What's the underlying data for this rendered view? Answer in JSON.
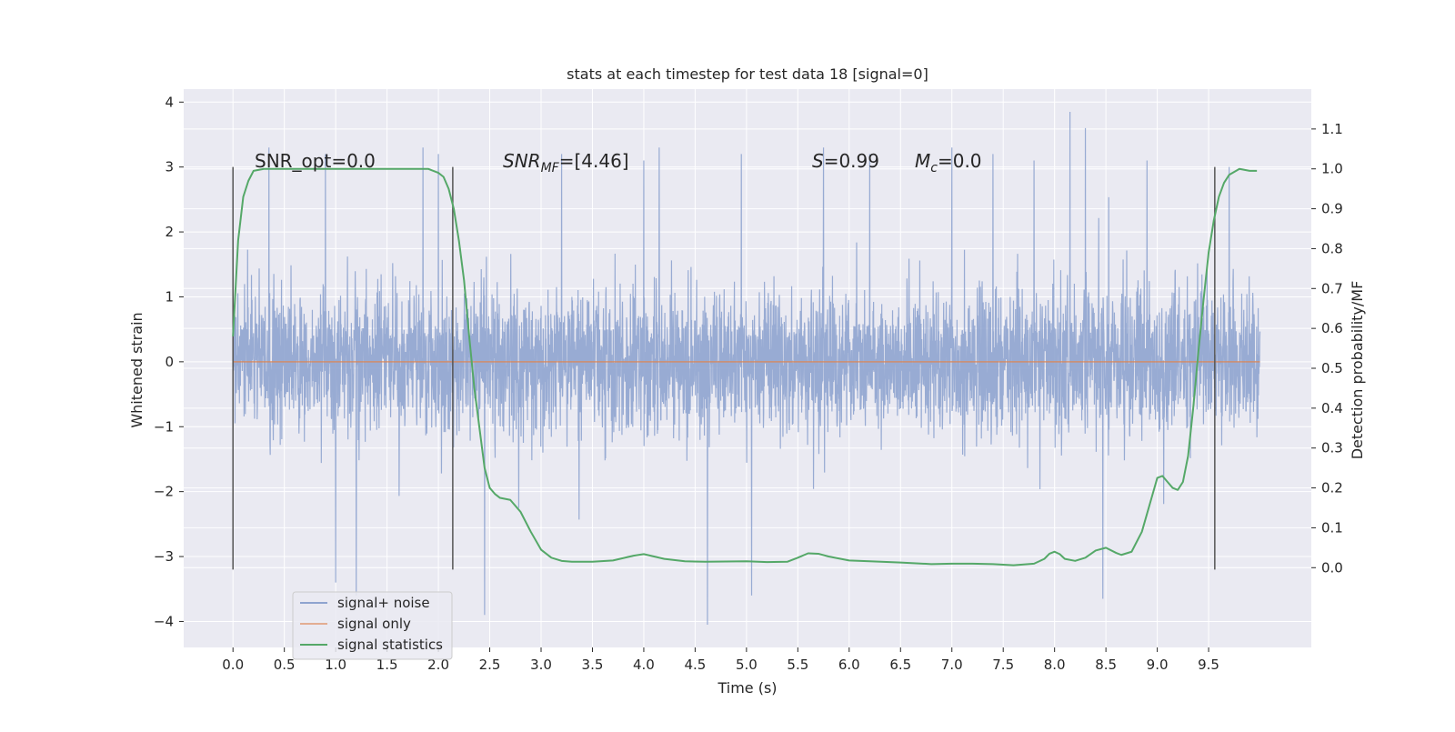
{
  "chart_data": {
    "type": "line",
    "title": "stats at each timestep for test data 18 [signal=0]",
    "xlabel": "Time (s)",
    "ylabel": "Whitened strain",
    "ylabel_right": "Detection probability/MF",
    "xlim": [
      -0.48,
      10.5
    ],
    "ylim": [
      -4.4,
      4.2
    ],
    "ylim_right": [
      -0.2,
      1.2
    ],
    "x_ticks": [
      0.0,
      0.5,
      1.0,
      1.5,
      2.0,
      2.5,
      3.0,
      3.5,
      4.0,
      4.5,
      5.0,
      5.5,
      6.0,
      6.5,
      7.0,
      7.5,
      8.0,
      8.5,
      9.0,
      9.5
    ],
    "x_tick_labels": [
      "0.0",
      "0.5",
      "1.0",
      "1.5",
      "2.0",
      "2.5",
      "3.0",
      "3.5",
      "4.0",
      "4.5",
      "5.0",
      "5.5",
      "6.0",
      "6.5",
      "7.0",
      "7.5",
      "8.0",
      "8.5",
      "9.0",
      "9.5"
    ],
    "y_ticks": [
      -4,
      -3,
      -2,
      -1,
      0,
      1,
      2,
      3,
      4
    ],
    "y_tick_labels": [
      "−4",
      "−3",
      "−2",
      "−1",
      "0",
      "1",
      "2",
      "3",
      "4"
    ],
    "y_right_ticks": [
      0.0,
      0.1,
      0.2,
      0.3,
      0.4,
      0.5,
      0.6,
      0.7,
      0.8,
      0.9,
      1.0,
      1.1
    ],
    "y_right_tick_labels": [
      "0.0",
      "0.1",
      "0.2",
      "0.3",
      "0.4",
      "0.5",
      "0.6",
      "0.7",
      "0.8",
      "0.9",
      "1.0",
      "1.1"
    ],
    "grid": true,
    "legend_position": "bottom-left",
    "annotations": {
      "snr_opt": "SNR_opt=0.0",
      "snr_mf_sym": "SNR",
      "snr_mf_sub": "MF",
      "snr_mf_val": "=[4.46]",
      "s_sym": "S",
      "s_val": "=0.99",
      "mc_sym": "M",
      "mc_sub": "c",
      "mc_val": "=0.0"
    },
    "vertical_lines": [
      0.0,
      2.14,
      9.56
    ],
    "vertical_line_range": [
      -3.2,
      3.0
    ],
    "series": [
      {
        "name": "signal+ noise",
        "color": "#8fa4cf",
        "x_range": [
          0.0,
          10.0
        ],
        "band_approx": [
          -1.6,
          1.6
        ],
        "peaks": [
          [
            0.35,
            3.3
          ],
          [
            0.9,
            3.2
          ],
          [
            1.0,
            -3.4
          ],
          [
            1.2,
            -3.6
          ],
          [
            1.85,
            3.3
          ],
          [
            2.0,
            3.2
          ],
          [
            2.45,
            -3.9
          ],
          [
            3.2,
            3.2
          ],
          [
            4.0,
            3.1
          ],
          [
            4.15,
            3.3
          ],
          [
            4.62,
            -4.05
          ],
          [
            4.95,
            3.2
          ],
          [
            5.05,
            -3.6
          ],
          [
            5.75,
            3.3
          ],
          [
            6.2,
            3.2
          ],
          [
            7.0,
            3.3
          ],
          [
            7.4,
            3.2
          ],
          [
            7.8,
            3.1
          ],
          [
            8.15,
            3.85
          ],
          [
            8.3,
            3.6
          ],
          [
            8.47,
            -3.65
          ],
          [
            8.9,
            3.1
          ],
          [
            9.7,
            3.0
          ]
        ]
      },
      {
        "name": "signal only",
        "color": "#dd8452",
        "x": [
          0.0,
          10.0
        ],
        "y": [
          0.0,
          0.0
        ]
      },
      {
        "name": "signal statistics",
        "color": "#55a868",
        "axis": "right",
        "x": [
          0.0,
          0.05,
          0.1,
          0.15,
          0.2,
          0.3,
          0.5,
          1.0,
          1.5,
          1.9,
          2.0,
          2.05,
          2.1,
          2.15,
          2.2,
          2.25,
          2.3,
          2.35,
          2.4,
          2.45,
          2.5,
          2.55,
          2.6,
          2.7,
          2.8,
          2.9,
          3.0,
          3.1,
          3.2,
          3.3,
          3.5,
          3.7,
          3.9,
          4.0,
          4.2,
          4.4,
          4.6,
          5.0,
          5.2,
          5.4,
          5.5,
          5.6,
          5.7,
          5.8,
          6.0,
          6.2,
          6.5,
          6.8,
          7.0,
          7.2,
          7.4,
          7.6,
          7.8,
          7.9,
          7.95,
          8.0,
          8.05,
          8.1,
          8.2,
          8.3,
          8.4,
          8.5,
          8.6,
          8.65,
          8.75,
          8.85,
          8.95,
          9.0,
          9.05,
          9.1,
          9.15,
          9.2,
          9.25,
          9.3,
          9.35,
          9.4,
          9.45,
          9.5,
          9.55,
          9.6,
          9.65,
          9.7,
          9.8,
          9.9,
          9.97
        ],
        "y": [
          0.58,
          0.82,
          0.93,
          0.97,
          0.995,
          1.0,
          1.0,
          1.0,
          1.0,
          1.0,
          0.99,
          0.98,
          0.95,
          0.9,
          0.82,
          0.72,
          0.58,
          0.45,
          0.35,
          0.25,
          0.2,
          0.185,
          0.175,
          0.17,
          0.14,
          0.09,
          0.045,
          0.025,
          0.017,
          0.015,
          0.015,
          0.018,
          0.03,
          0.034,
          0.022,
          0.016,
          0.015,
          0.016,
          0.014,
          0.015,
          0.025,
          0.036,
          0.035,
          0.028,
          0.018,
          0.016,
          0.013,
          0.009,
          0.01,
          0.01,
          0.009,
          0.006,
          0.01,
          0.022,
          0.035,
          0.04,
          0.034,
          0.022,
          0.017,
          0.025,
          0.043,
          0.05,
          0.037,
          0.032,
          0.04,
          0.09,
          0.18,
          0.225,
          0.23,
          0.215,
          0.2,
          0.195,
          0.215,
          0.28,
          0.4,
          0.54,
          0.67,
          0.79,
          0.87,
          0.93,
          0.965,
          0.985,
          1.0,
          0.995,
          0.995
        ]
      }
    ]
  }
}
